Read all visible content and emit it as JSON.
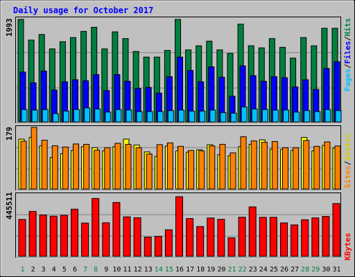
{
  "title": "Daily usage for October 2017",
  "colors": {
    "background": "#c0c0c0",
    "panel": "#c0c0c0",
    "title": "#0000ff",
    "hits": "#008040",
    "files": "#0000ff",
    "pages": "#00c0ff",
    "visits": "#ffff00",
    "sites": "#ff8000",
    "kbytes": "#ff0000",
    "weekday_label": "#000000",
    "weekend_label": "#008040"
  },
  "legend": {
    "pages": "Pages",
    "files": "Files",
    "hits": "Hits",
    "sites": "Sites",
    "visits": "Visits",
    "kbytes": "KBytes",
    "sep": "/"
  },
  "chart_data": {
    "type": "bar",
    "title": "Daily usage for October 2017",
    "categories": [
      "1",
      "2",
      "3",
      "4",
      "5",
      "6",
      "7",
      "8",
      "9",
      "10",
      "11",
      "12",
      "13",
      "14",
      "15",
      "16",
      "17",
      "18",
      "19",
      "20",
      "21",
      "22",
      "23",
      "24",
      "25",
      "26",
      "27",
      "28",
      "29",
      "30",
      "31"
    ],
    "weekend_days": [
      "1",
      "7",
      "8",
      "14",
      "15",
      "21",
      "22",
      "28",
      "29"
    ],
    "panels": [
      {
        "name": "hits-files-pages",
        "max_label": "1993",
        "ylim": [
          0,
          1993
        ],
        "series": [
          {
            "name": "Hits",
            "values": [
              1993,
              1590,
              1700,
              1420,
              1560,
              1640,
              1760,
              1840,
              1420,
              1750,
              1620,
              1370,
              1260,
              1260,
              1390,
              1993,
              1400,
              1480,
              1570,
              1400,
              1330,
              1900,
              1480,
              1440,
              1620,
              1450,
              1240,
              1640,
              1480,
              1820,
              1820
            ]
          },
          {
            "name": "Files",
            "values": [
              970,
              760,
              990,
              620,
              780,
              820,
              800,
              920,
              610,
              920,
              790,
              650,
              670,
              560,
              880,
              1260,
              1000,
              780,
              1070,
              870,
              500,
              1090,
              900,
              790,
              880,
              860,
              680,
              820,
              630,
              1040,
              1170
            ]
          },
          {
            "name": "Pages",
            "values": [
              240,
              230,
              240,
              160,
              210,
              240,
              270,
              250,
              190,
              240,
              230,
              200,
              200,
              200,
              220,
              230,
              210,
              210,
              230,
              180,
              170,
              290,
              250,
              240,
              230,
              230,
              190,
              220,
              200,
              240,
              220
            ]
          }
        ]
      },
      {
        "name": "visits-sites",
        "max_label": "179",
        "ylim": [
          0,
          179
        ],
        "series": [
          {
            "name": "Visits",
            "values": [
              145,
              150,
              126,
              92,
              103,
              112,
              123,
              120,
              111,
              123,
              145,
              128,
              108,
              95,
              125,
              111,
              107,
              114,
              129,
              100,
              97,
              123,
              130,
              143,
              116,
              115,
              112,
              150,
              111,
              127,
              119
            ]
          },
          {
            "name": "Sites",
            "values": [
              139,
              179,
              142,
              126,
              122,
              131,
              130,
              113,
              120,
              133,
              130,
              120,
              102,
              129,
              134,
              124,
              112,
              111,
              125,
              130,
              105,
              152,
              140,
              136,
              138,
              120,
              120,
              141,
              124,
              137,
              125
            ]
          }
        ]
      },
      {
        "name": "kbytes",
        "max_label": "445511",
        "ylim": [
          0,
          445511
        ],
        "series": [
          {
            "name": "KBytes",
            "values": [
              275000,
              335000,
              309000,
              300000,
              306000,
              352000,
              248000,
              432000,
              250000,
              402000,
              295000,
              288000,
              143000,
              148000,
              198000,
              445511,
              282000,
              222000,
              286000,
              276000,
              138000,
              292000,
              369000,
              291000,
              291000,
              249000,
              234000,
              273000,
              287000,
              298000,
              394000
            ]
          }
        ]
      }
    ]
  }
}
